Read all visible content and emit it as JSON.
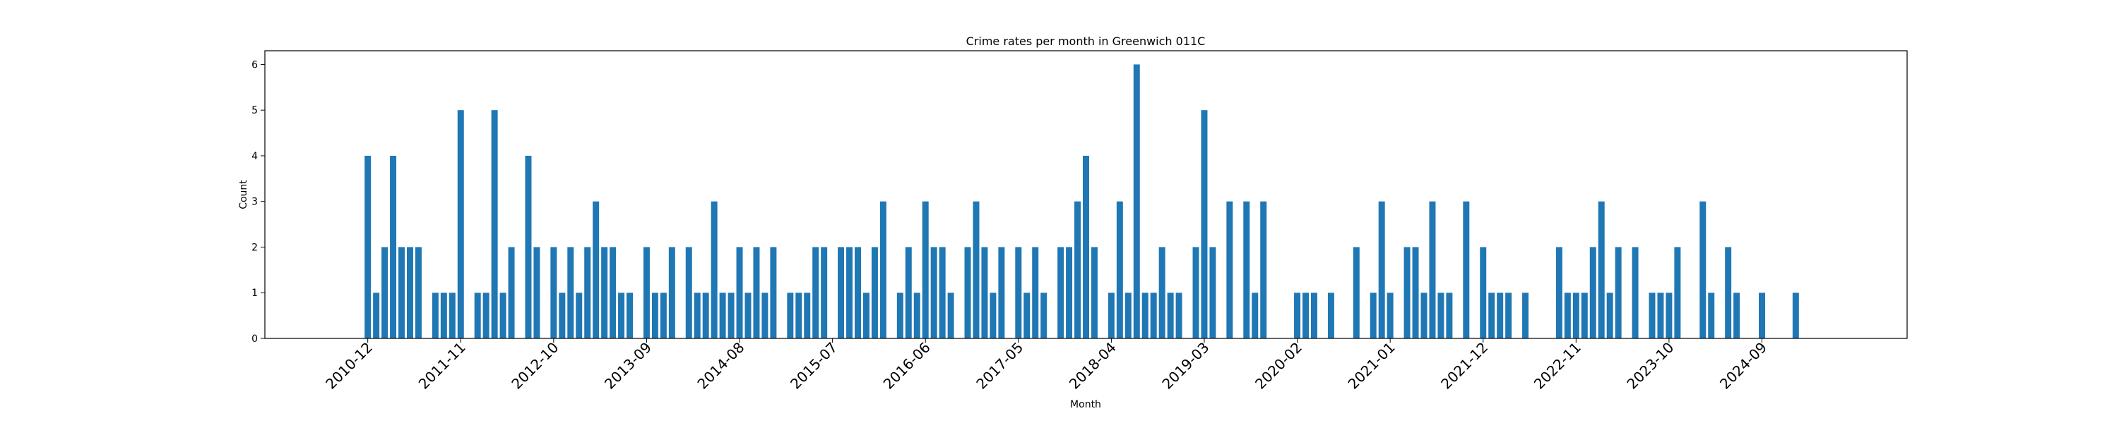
{
  "chart_data": {
    "type": "bar",
    "title": "Crime rates per month in Greenwich 011C",
    "xlabel": "Month",
    "ylabel": "Count",
    "ylim": [
      0,
      6.3
    ],
    "yticks": [
      0,
      1,
      2,
      3,
      4,
      5,
      6
    ],
    "xticks": [
      "2010-12",
      "2011-11",
      "2012-10",
      "2013-09",
      "2014-08",
      "2015-07",
      "2016-06",
      "2017-05",
      "2018-04",
      "2019-03",
      "2020-02",
      "2021-01",
      "2021-12",
      "2022-11",
      "2023-10",
      "2024-09"
    ],
    "grid": false,
    "bar_color": "#1f77b4",
    "x": [
      "2010-12",
      "2011-01",
      "2011-02",
      "2011-03",
      "2011-04",
      "2011-05",
      "2011-06",
      "2011-07",
      "2011-08",
      "2011-09",
      "2011-10",
      "2011-11",
      "2011-12",
      "2012-01",
      "2012-02",
      "2012-03",
      "2012-04",
      "2012-05",
      "2012-06",
      "2012-07",
      "2012-08",
      "2012-09",
      "2012-10",
      "2012-11",
      "2012-12",
      "2013-01",
      "2013-02",
      "2013-03",
      "2013-04",
      "2013-05",
      "2013-06",
      "2013-07",
      "2013-08",
      "2013-09",
      "2013-10",
      "2013-11",
      "2013-12",
      "2014-01",
      "2014-02",
      "2014-03",
      "2014-04",
      "2014-05",
      "2014-06",
      "2014-07",
      "2014-08",
      "2014-09",
      "2014-10",
      "2014-11",
      "2014-12",
      "2015-01",
      "2015-02",
      "2015-03",
      "2015-04",
      "2015-05",
      "2015-06",
      "2015-07",
      "2015-08",
      "2015-09",
      "2015-10",
      "2015-11",
      "2015-12",
      "2016-01",
      "2016-02",
      "2016-03",
      "2016-04",
      "2016-05",
      "2016-06",
      "2016-07",
      "2016-08",
      "2016-09",
      "2016-10",
      "2016-11",
      "2016-12",
      "2017-01",
      "2017-02",
      "2017-03",
      "2017-04",
      "2017-05",
      "2017-06",
      "2017-07",
      "2017-08",
      "2017-09",
      "2017-10",
      "2017-11",
      "2017-12",
      "2018-01",
      "2018-02",
      "2018-03",
      "2018-04",
      "2018-05",
      "2018-06",
      "2018-07",
      "2018-08",
      "2018-09",
      "2018-10",
      "2018-11",
      "2018-12",
      "2019-01",
      "2019-02",
      "2019-03",
      "2019-04",
      "2019-05",
      "2019-06",
      "2019-07",
      "2019-08",
      "2019-09",
      "2019-10",
      "2019-11",
      "2019-12",
      "2020-01",
      "2020-02",
      "2020-03",
      "2020-04",
      "2020-05",
      "2020-06",
      "2020-07",
      "2020-08",
      "2020-09",
      "2020-10",
      "2020-11",
      "2020-12",
      "2021-01",
      "2021-02",
      "2021-03",
      "2021-04",
      "2021-05",
      "2021-06",
      "2021-07",
      "2021-08",
      "2021-09",
      "2021-10",
      "2021-11",
      "2021-12",
      "2022-01",
      "2022-02",
      "2022-03",
      "2022-04",
      "2022-05",
      "2022-06",
      "2022-07",
      "2022-08",
      "2022-09",
      "2022-10",
      "2022-11",
      "2022-12",
      "2023-01",
      "2023-02",
      "2023-03",
      "2023-04",
      "2023-05",
      "2023-06",
      "2023-07",
      "2023-08",
      "2023-09",
      "2023-10",
      "2023-11",
      "2023-12",
      "2024-01",
      "2024-02",
      "2024-03",
      "2024-04",
      "2024-05",
      "2024-06",
      "2024-07",
      "2024-08",
      "2024-09",
      "2024-10",
      "2024-11",
      "2024-12",
      "2025-01",
      "2025-02",
      "2025-03",
      "2025-04",
      "2025-05",
      "2025-06"
    ],
    "values": [
      4,
      1,
      2,
      4,
      2,
      2,
      2,
      0,
      1,
      1,
      1,
      5,
      0,
      1,
      1,
      5,
      1,
      2,
      0,
      4,
      2,
      0,
      2,
      1,
      2,
      1,
      2,
      3,
      2,
      2,
      1,
      1,
      0,
      2,
      1,
      1,
      2,
      0,
      2,
      1,
      1,
      3,
      1,
      1,
      2,
      1,
      2,
      1,
      2,
      0,
      1,
      1,
      1,
      2,
      2,
      0,
      2,
      2,
      2,
      1,
      2,
      3,
      0,
      1,
      2,
      1,
      3,
      2,
      2,
      1,
      0,
      2,
      3,
      2,
      1,
      2,
      0,
      2,
      1,
      2,
      1,
      0,
      2,
      2,
      3,
      4,
      2,
      0,
      1,
      3,
      1,
      6,
      1,
      1,
      2,
      1,
      1,
      0,
      2,
      5,
      2,
      0,
      3,
      0,
      3,
      1,
      3,
      0,
      0,
      0,
      1,
      1,
      1,
      0,
      1,
      0,
      0,
      2,
      0,
      1,
      3,
      1,
      0,
      2,
      2,
      1,
      3,
      1,
      1,
      0,
      3,
      0,
      2,
      1,
      1,
      1,
      0,
      1,
      0,
      0,
      0,
      2,
      1,
      1,
      1,
      2,
      3,
      1,
      2,
      0,
      2,
      0,
      1,
      1,
      1,
      2,
      0,
      0,
      3,
      1,
      0,
      2,
      1,
      0,
      0,
      1,
      0,
      0,
      0,
      1,
      0,
      0,
      0,
      0,
      0
    ]
  }
}
